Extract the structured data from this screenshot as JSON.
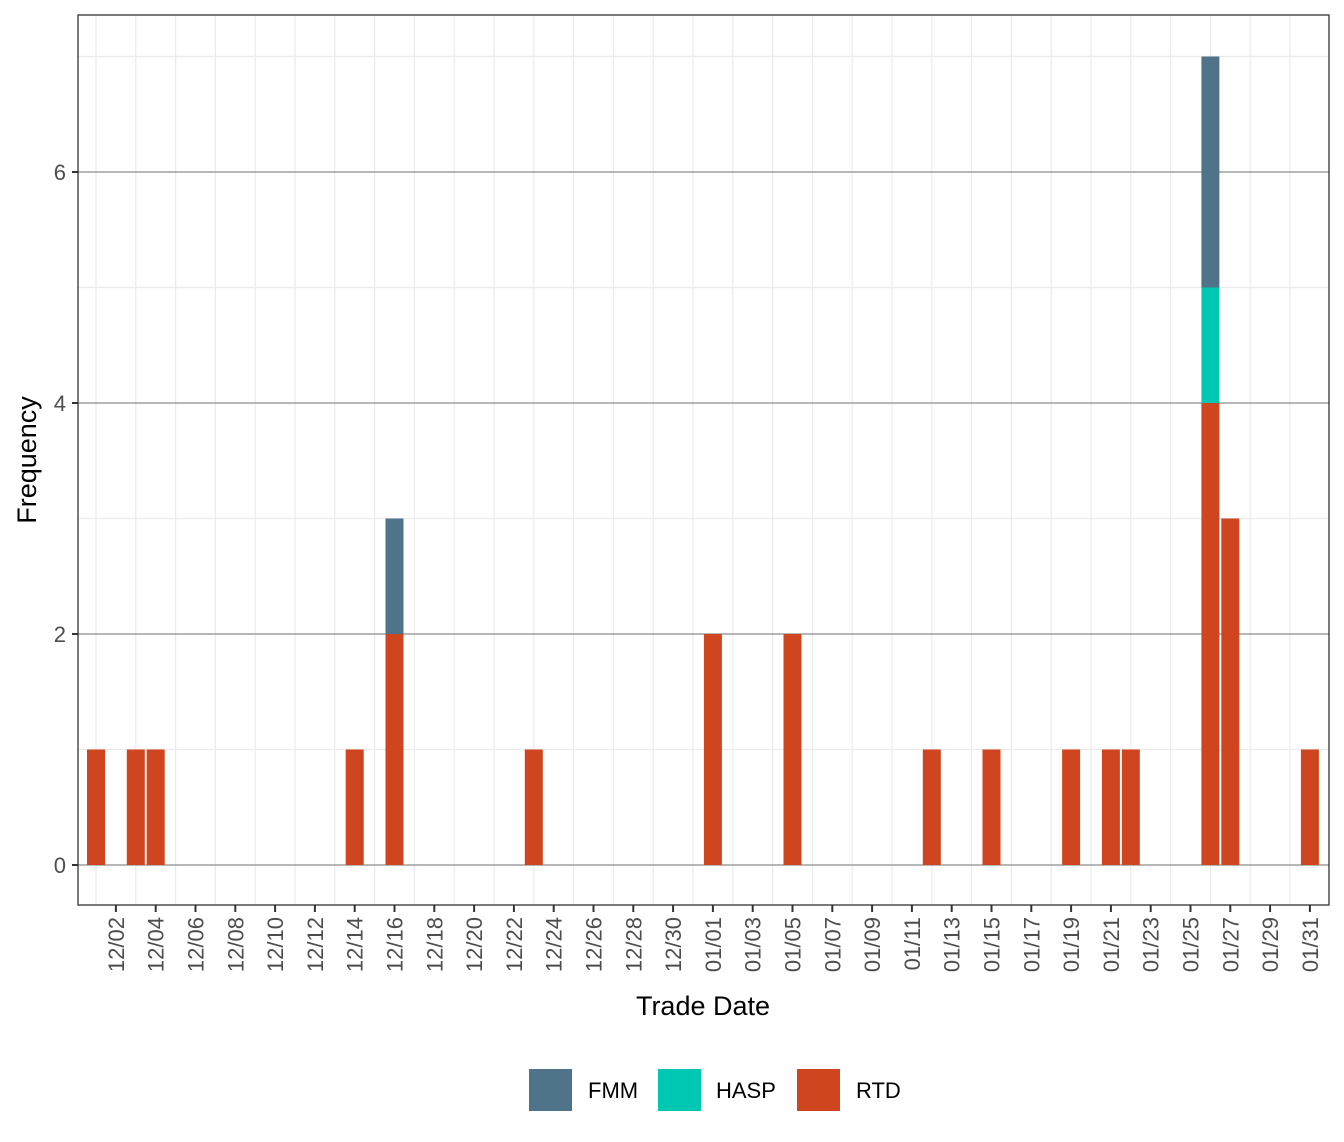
{
  "chart_data": {
    "type": "bar",
    "stacked": true,
    "title": "",
    "xlabel": "Trade Date",
    "ylabel": "Frequency",
    "ylim": [
      -0.35,
      7.35
    ],
    "yticks": [
      0,
      2,
      4,
      6
    ],
    "grid": true,
    "legend_position": "bottom",
    "x_dates": [
      "12/01",
      "12/02",
      "12/03",
      "12/04",
      "12/05",
      "12/06",
      "12/07",
      "12/08",
      "12/09",
      "12/10",
      "12/11",
      "12/12",
      "12/13",
      "12/14",
      "12/15",
      "12/16",
      "12/17",
      "12/18",
      "12/19",
      "12/20",
      "12/21",
      "12/22",
      "12/23",
      "12/24",
      "12/25",
      "12/26",
      "12/27",
      "12/28",
      "12/29",
      "12/30",
      "12/31",
      "01/01",
      "01/02",
      "01/03",
      "01/04",
      "01/05",
      "01/06",
      "01/07",
      "01/08",
      "01/09",
      "01/10",
      "01/11",
      "01/12",
      "01/13",
      "01/14",
      "01/15",
      "01/16",
      "01/17",
      "01/18",
      "01/19",
      "01/20",
      "01/21",
      "01/22",
      "01/23",
      "01/24",
      "01/25",
      "01/26",
      "01/27",
      "01/28",
      "01/29",
      "01/30",
      "01/31"
    ],
    "xtick_labels": [
      "12/02",
      "12/04",
      "12/06",
      "12/08",
      "12/10",
      "12/12",
      "12/14",
      "12/16",
      "12/18",
      "12/20",
      "12/22",
      "12/24",
      "12/26",
      "12/28",
      "12/30",
      "01/01",
      "01/03",
      "01/05",
      "01/07",
      "01/09",
      "01/11",
      "01/13",
      "01/15",
      "01/17",
      "01/19",
      "01/21",
      "01/23",
      "01/25",
      "01/27",
      "01/29",
      "01/31"
    ],
    "categories": [
      "12/01",
      "12/03",
      "12/04",
      "12/14",
      "12/16",
      "12/23",
      "01/01",
      "01/05",
      "01/12",
      "01/15",
      "01/19",
      "01/21",
      "01/22",
      "01/26",
      "01/27",
      "01/31"
    ],
    "series": [
      {
        "name": "RTD",
        "color": "#CF4520",
        "values": [
          1,
          1,
          1,
          1,
          2,
          1,
          2,
          2,
          1,
          1,
          1,
          1,
          1,
          4,
          3,
          1
        ]
      },
      {
        "name": "HASP",
        "color": "#00C7B1",
        "values": [
          0,
          0,
          0,
          0,
          0,
          0,
          0,
          0,
          0,
          0,
          0,
          0,
          0,
          1,
          0,
          0
        ]
      },
      {
        "name": "FMM",
        "color": "#4F7489",
        "values": [
          0,
          0,
          0,
          0,
          1,
          0,
          0,
          0,
          0,
          0,
          0,
          0,
          0,
          2,
          0,
          0
        ]
      }
    ],
    "legend": [
      {
        "name": "FMM",
        "color": "#4F7489"
      },
      {
        "name": "HASP",
        "color": "#00C7B1"
      },
      {
        "name": "RTD",
        "color": "#CF4520"
      }
    ]
  }
}
